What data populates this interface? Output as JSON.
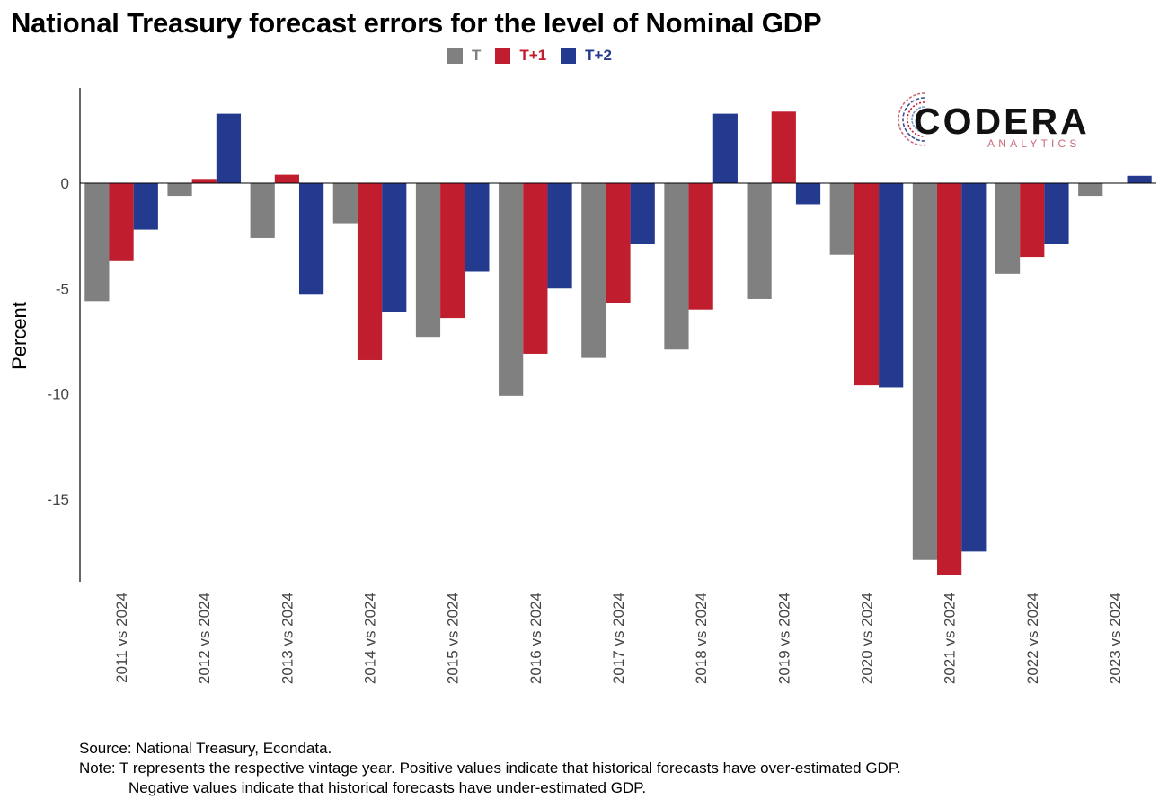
{
  "title": "National Treasury forecast errors for the level of Nominal GDP",
  "legend": [
    {
      "label": "T",
      "color": "#808080"
    },
    {
      "label": "T+1",
      "color": "#C01E2E"
    },
    {
      "label": "T+2",
      "color": "#233A8E"
    }
  ],
  "logo": {
    "word": "CODERA",
    "sub": "ANALYTICS"
  },
  "chart_data": {
    "type": "bar",
    "ylabel": "Percent",
    "xlabel": "",
    "ylim": [
      -19,
      4.5
    ],
    "yticks": [
      0,
      -5,
      -10,
      -15
    ],
    "grid": false,
    "legend_position": "top",
    "categories": [
      "2011 vs 2024",
      "2012 vs 2024",
      "2013 vs 2024",
      "2014 vs 2024",
      "2015 vs 2024",
      "2016 vs 2024",
      "2017 vs 2024",
      "2018 vs 2024",
      "2019 vs 2024",
      "2020 vs 2024",
      "2021 vs 2024",
      "2022 vs 2024",
      "2023 vs 2024"
    ],
    "series": [
      {
        "name": "T",
        "color": "#808080",
        "values": [
          -5.6,
          -0.6,
          -2.6,
          -1.9,
          -7.3,
          -10.1,
          -8.3,
          -7.9,
          -5.5,
          -3.4,
          -17.9,
          -4.3,
          -0.6
        ]
      },
      {
        "name": "T+1",
        "color": "#C01E2E",
        "values": [
          -3.7,
          0.2,
          0.4,
          -8.4,
          -6.4,
          -8.1,
          -5.7,
          -6.0,
          3.4,
          -9.6,
          -18.6,
          -3.5,
          null
        ]
      },
      {
        "name": "T+2",
        "color": "#233A8E",
        "values": [
          -2.2,
          3.3,
          -5.3,
          -6.1,
          -4.2,
          -5.0,
          -2.9,
          3.3,
          -1.0,
          -9.7,
          -17.5,
          -2.9,
          0.35
        ]
      }
    ]
  },
  "footer": {
    "source": "Source: National Treasury, Econdata.",
    "note1": "Note: T represents the respective vintage year. Positive values indicate that historical forecasts have over-estimated GDP.",
    "note2": "Negative values indicate that historical forecasts have under-estimated GDP."
  }
}
